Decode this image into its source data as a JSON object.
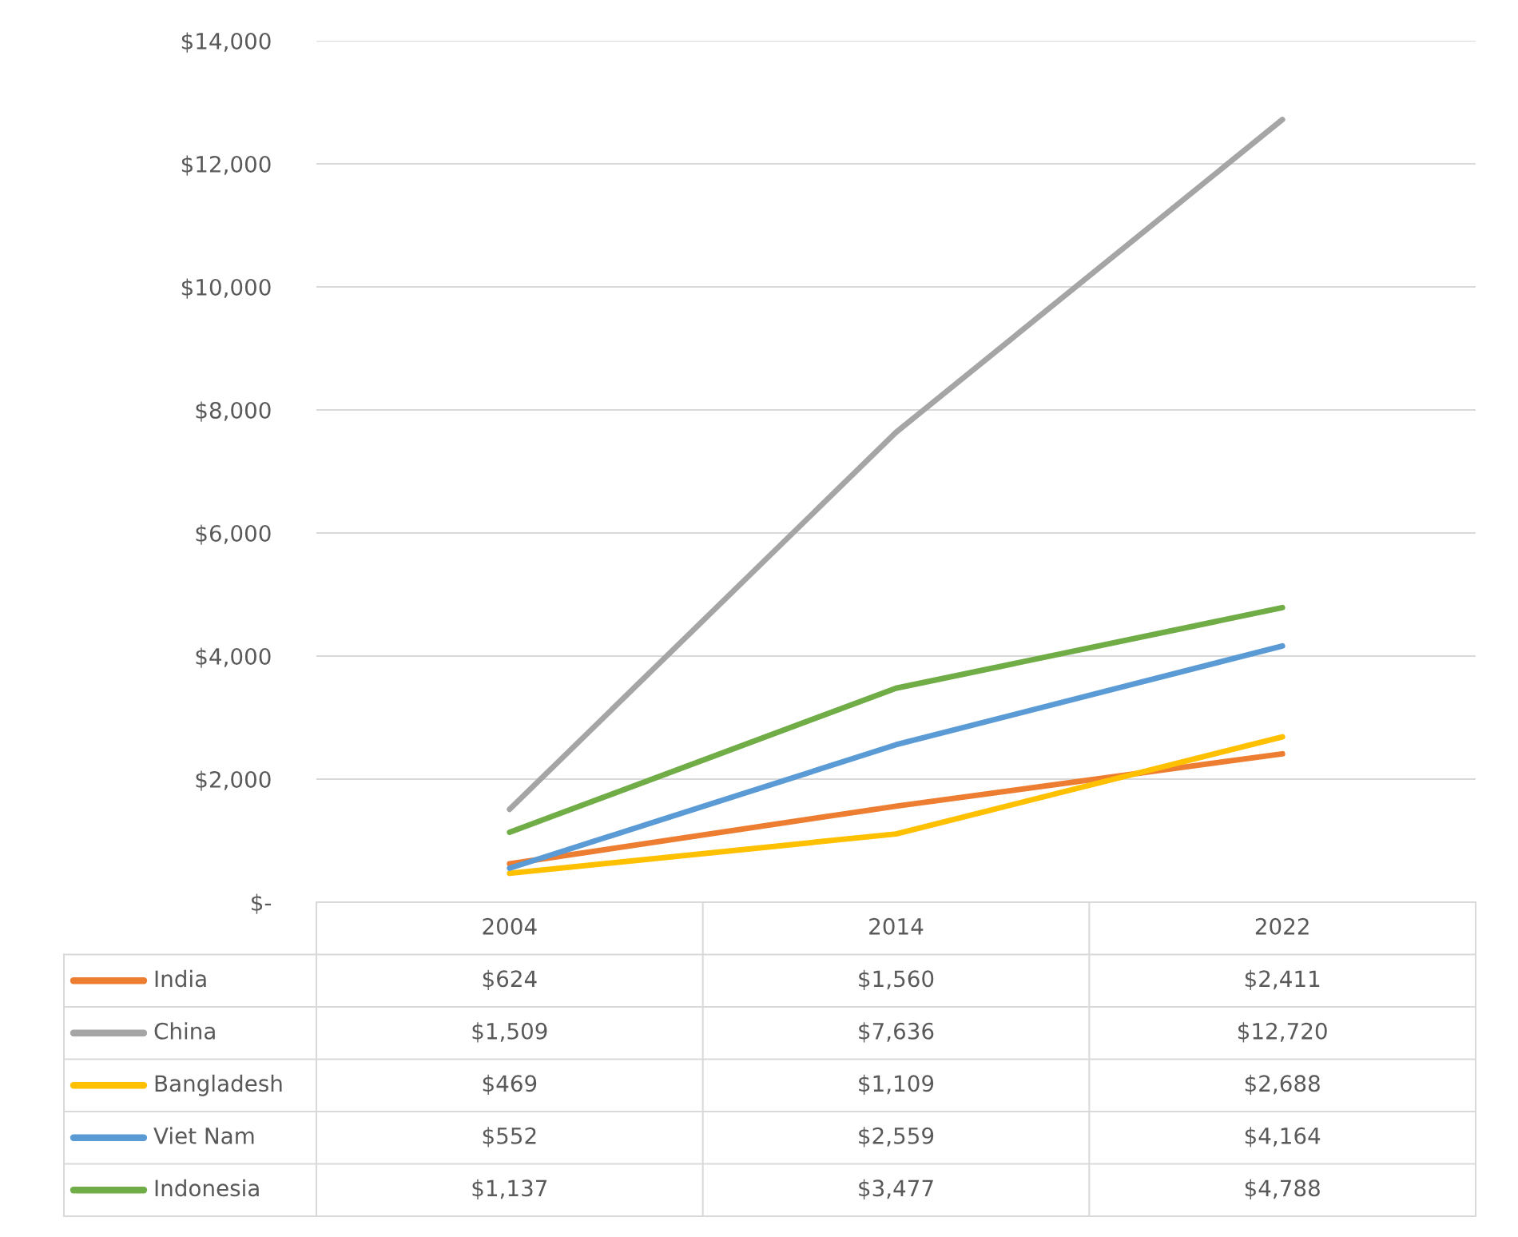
{
  "chart_data": {
    "type": "line",
    "categories": [
      "2004",
      "2014",
      "2022"
    ],
    "series": [
      {
        "name": "India",
        "color": "#ed7d31",
        "values": [
          624,
          1560,
          2411
        ],
        "value_labels": [
          "$624",
          "$1,560",
          "$2,411"
        ]
      },
      {
        "name": "China",
        "color": "#a5a5a5",
        "values": [
          1509,
          7636,
          12720
        ],
        "value_labels": [
          "$1,509",
          "$7,636",
          "$12,720"
        ]
      },
      {
        "name": "Bangladesh",
        "color": "#ffc000",
        "values": [
          469,
          1109,
          2688
        ],
        "value_labels": [
          "$469",
          "$1,109",
          "$2,688"
        ]
      },
      {
        "name": "Viet Nam",
        "color": "#5b9bd5",
        "values": [
          552,
          2559,
          4164
        ],
        "value_labels": [
          "$552",
          "$2,559",
          "$4,164"
        ]
      },
      {
        "name": "Indonesia",
        "color": "#70ad47",
        "values": [
          1137,
          3477,
          4788
        ],
        "value_labels": [
          "$1,137",
          "$3,477",
          "$4,788"
        ]
      }
    ],
    "ylim": [
      0,
      14000
    ],
    "yticks": [
      {
        "value": 0,
        "label": "$-"
      },
      {
        "value": 2000,
        "label": "$2,000"
      },
      {
        "value": 4000,
        "label": "$4,000"
      },
      {
        "value": 6000,
        "label": "$6,000"
      },
      {
        "value": 8000,
        "label": "$8,000"
      },
      {
        "value": 10000,
        "label": "$10,000"
      },
      {
        "value": 12000,
        "label": "$12,000"
      },
      {
        "value": 14000,
        "label": "$14,000"
      }
    ],
    "grid": "y",
    "legend": "bottom",
    "line_style": "solid",
    "marker": "none"
  }
}
